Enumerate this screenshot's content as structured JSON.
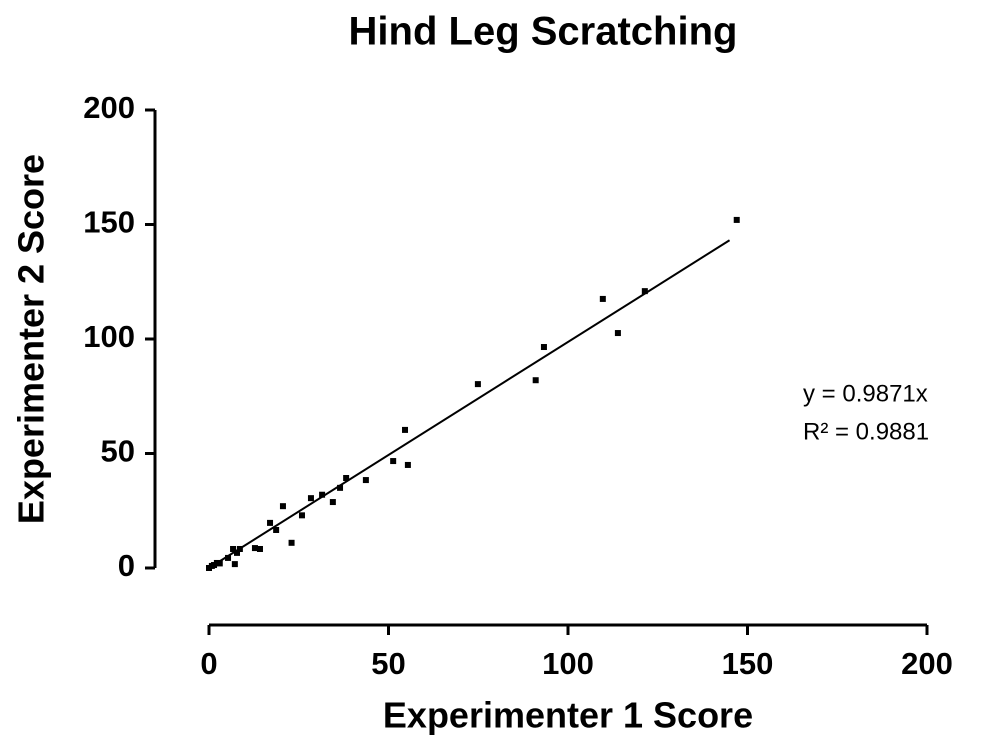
{
  "chart_data": {
    "type": "scatter",
    "title": "Hind Leg Scratching",
    "x_label": "Experimenter 1 Score",
    "y_label": "Experimenter 2 Score",
    "x": [
      0,
      0.8,
      1.4,
      2.2,
      3,
      5.3,
      6.7,
      7.2,
      7.8,
      8.6,
      12.8,
      14.2,
      17,
      18.7,
      20.6,
      23,
      25.9,
      28.4,
      31.5,
      34.5,
      36.5,
      38.2,
      43.7,
      51.3,
      54.6,
      55.4,
      74.9,
      91,
      93.3,
      109.7,
      113.9,
      121.4,
      147
    ],
    "values": [
      0,
      0.9,
      1.3,
      2.2,
      2,
      4.4,
      8.3,
      1.7,
      6.6,
      8.3,
      8.7,
      8.3,
      19.7,
      16.6,
      27,
      11,
      23,
      30.5,
      32,
      28.8,
      35,
      39.3,
      38.4,
      46.7,
      60.3,
      45,
      80.3,
      82,
      96.5,
      117.5,
      102.6,
      120.9,
      152
    ],
    "color": "#000000",
    "fit": {
      "slope": 0.9871,
      "x": [
        0,
        145
      ]
    },
    "annotations": [
      "y = 0.9871x",
      "R² = 0.9881"
    ],
    "xlim": [
      0,
      200
    ],
    "ylim": [
      0,
      200
    ],
    "xticks": [
      0,
      50,
      100,
      150,
      200
    ],
    "yticks": [
      0,
      50,
      100,
      150,
      200
    ]
  }
}
